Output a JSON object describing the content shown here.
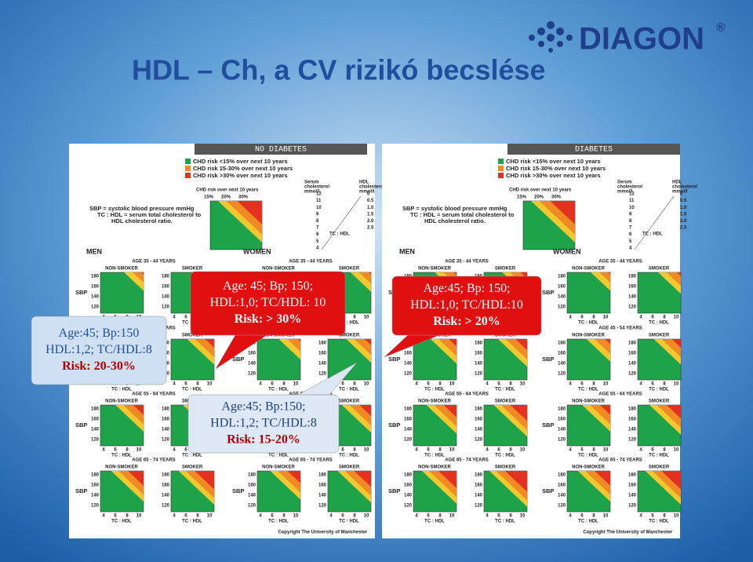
{
  "title": "HDL – Ch, a CV rizikó becslése",
  "logo": "DIAGON",
  "panels": [
    {
      "header": "NO DIABETES"
    },
    {
      "header": "DIABETES"
    }
  ],
  "legend": [
    "CHD risk <15% over next 10 years",
    "CHD risk 15-30% over next 10 years",
    "CHD risk >30% over next 10 years"
  ],
  "chd_label": "CHD risk  over next 10 years",
  "chd_levels": [
    "15%",
    "20%",
    "30%"
  ],
  "sbp_note": [
    "SBP = systolic blood pressure mmHg",
    "TC : HDL = serum total cholesterol to",
    "HDL cholesterol ratio."
  ],
  "serum_label": [
    "Serum",
    "cholesterol",
    "mmol/l"
  ],
  "hdl_label": [
    "HDL",
    "cholesterol",
    "mmol/l"
  ],
  "serum_ticks": [
    "12",
    "11",
    "10",
    "9",
    "8",
    "7",
    "6",
    "5",
    "4"
  ],
  "hdl_ticks": [
    "0",
    "0.5",
    "1.0",
    "1.5",
    "2.0",
    "2.5"
  ],
  "tc_hdl": "TC : HDL",
  "groups": [
    "MEN",
    "WOMEN"
  ],
  "ages": [
    "AGE 35 - 44 YEARS",
    "AGE 45 - 54 YEARS",
    "AGE 55 - 64 YEARS",
    "AGE 65 - 74 YEARS"
  ],
  "smoking": [
    "NON-SMOKER",
    "SMOKER"
  ],
  "sbp": "SBP",
  "sbp_ticks": [
    "180",
    "160",
    "140",
    "120"
  ],
  "x_ticks": [
    "4",
    "6",
    "8",
    "10"
  ],
  "copyright": "Copyright The University of Manchester",
  "callouts": [
    {
      "lines": [
        "Age:45; Bp:150",
        "HDL:1,2; TC/HDL:8",
        "Risk: 20-30%"
      ]
    },
    {
      "lines": [
        "Age: 45; Bp; 150;",
        "HDL:1,0; TC/HDL: 10",
        "Risk: > 30%"
      ]
    },
    {
      "lines": [
        "Age:45; Bp: 150;",
        "HDL:1,0; TC/HDL:10",
        "Risk: > 20%"
      ]
    },
    {
      "lines": [
        "Age:45; Bp:150;",
        "HDL:1,2; TC/HDL:8",
        "Risk: 15-20%"
      ]
    }
  ]
}
